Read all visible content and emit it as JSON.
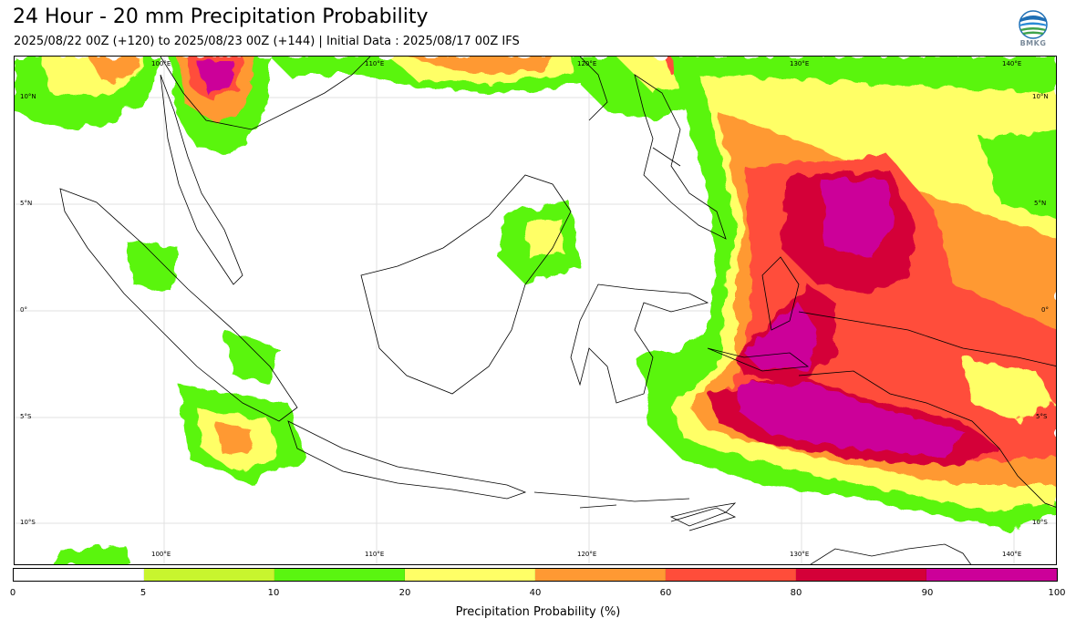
{
  "header": {
    "title": "24 Hour - 20 mm Precipitation Probability",
    "subtitle": "2025/08/22 00Z (+120) to 2025/08/23 00Z (+144) | Initial Data : 2025/08/17 00Z IFS",
    "logo_text": "BMKG"
  },
  "map": {
    "lon_labels_top": [
      "100°E",
      "110°E",
      "120°E",
      "130°E",
      "140°E"
    ],
    "lon_labels_bottom": [
      "100°E",
      "110°E",
      "120°E",
      "130°E",
      "140°E"
    ],
    "lat_labels_left": [
      "10°N",
      "5°N",
      "0°",
      "5°S",
      "10°S"
    ],
    "lat_labels_right": [
      "10°N",
      "5°N",
      "0°",
      "5°S",
      "10°S"
    ]
  },
  "colorbar": {
    "label": "Precipitation Probability (%)",
    "ticks": [
      "0",
      "5",
      "10",
      "20",
      "40",
      "60",
      "80",
      "90",
      "100"
    ],
    "colors": [
      "#ffffff",
      "#c8f52e",
      "#5af510",
      "#ffff66",
      "#ff9933",
      "#ff4d3a",
      "#d40038",
      "#cc0099"
    ]
  }
}
